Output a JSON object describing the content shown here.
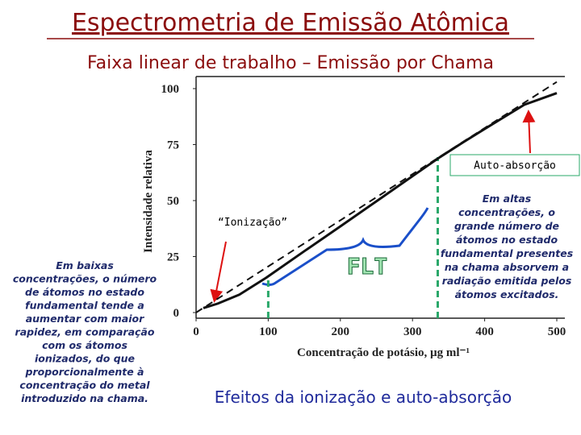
{
  "chart_data": {
    "type": "line",
    "title": "Espectrometria de Emissão Atômica",
    "subtitle": "Faixa linear de trabalho – Emissão por Chama",
    "xlabel": "Concentração de potásio, µg ml⁻¹",
    "ylabel": "Intensidade relativa",
    "xlim": [
      0,
      500
    ],
    "ylim": [
      0,
      105
    ],
    "xticks": [
      0,
      100,
      200,
      300,
      400,
      500
    ],
    "yticks": [
      0,
      25,
      50,
      75,
      100
    ],
    "series": [
      {
        "color": "#111111",
        "dash": false,
        "x": [
          10,
          30,
          60,
          97,
          150,
          200,
          250,
          300,
          338,
          370,
          400,
          455,
          500
        ],
        "values": [
          2,
          4,
          8,
          15.5,
          27.4,
          38.5,
          49.7,
          60.9,
          69.4,
          76,
          82,
          92.8,
          98
        ]
      },
      {
        "color": "#111111",
        "dash": true,
        "x": [
          0,
          500
        ],
        "values": [
          0,
          103
        ]
      }
    ],
    "reference_lines": {
      "color": "#2aa86a",
      "x": [
        100,
        335
      ]
    },
    "annotations": {
      "auto_absorcao": "Auto-absorção",
      "ionizacao": "“Ionização”",
      "flt": "FLT",
      "left_note": [
        "Em baixas",
        "concentrações, o número",
        "de átomos no estado",
        "fundamental tende a",
        "aumentar com maior",
        "rapidez, em comparação",
        "com os átomos",
        "ionizados, do que",
        "proporcionalmente à",
        "concentração do metal",
        "introduzido na chama."
      ],
      "right_note": [
        "Em altas",
        "concentrações, o",
        "grande número de",
        "átomos no estado",
        "fundamental presentes",
        "na chama absorvem a",
        "radiação emitida pelos",
        "átomos excitados."
      ],
      "footer": "Efeitos da ionização e auto-absorção"
    }
  }
}
